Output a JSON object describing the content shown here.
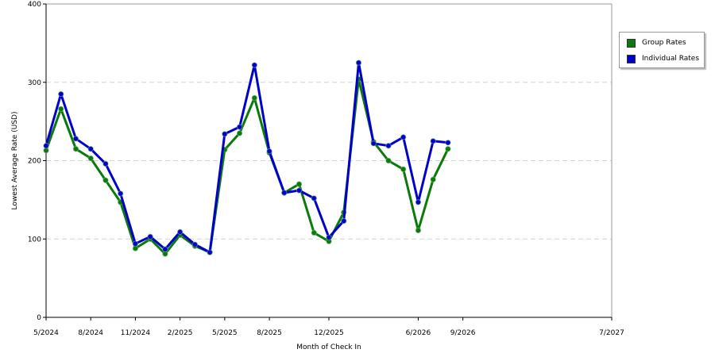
{
  "chart_data": {
    "type": "line",
    "xlabel": "Month of Check In",
    "ylabel": "Lowest Average Rate (USD)",
    "ylim": [
      0,
      400
    ],
    "yticks": [
      0,
      100,
      200,
      300,
      400
    ],
    "grid": true,
    "legend_position": "right",
    "x": [
      "5/2024",
      "6/2024",
      "7/2024",
      "8/2024",
      "9/2024",
      "10/2024",
      "11/2024",
      "12/2024",
      "1/2025",
      "2/2025",
      "3/2025",
      "4/2025",
      "5/2025",
      "6/2025",
      "7/2025",
      "8/2025",
      "9/2025",
      "10/2025",
      "11/2025",
      "12/2025",
      "1/2026",
      "2/2026",
      "3/2026",
      "4/2026",
      "5/2026",
      "6/2026",
      "7/2026",
      "8/2026",
      "9/2026",
      "10/2026",
      "11/2026",
      "12/2026",
      "1/2027",
      "2/2027",
      "3/2027",
      "4/2027",
      "5/2027",
      "6/2027",
      "7/2027"
    ],
    "x_tick_labels": [
      "5/2024",
      "8/2024",
      "11/2024",
      "2/2025",
      "5/2025",
      "8/2025",
      "12/2025",
      "6/2026",
      "9/2026",
      "7/2027"
    ],
    "x_tick_positions": [
      "5/2024",
      "8/2024",
      "11/2024",
      "2/2025",
      "5/2025",
      "8/2025",
      "12/2025",
      "6/2026",
      "9/2026",
      "7/2027"
    ],
    "series": [
      {
        "name": "Group Rates",
        "color": "#0a7a0a",
        "points": [
          [
            "5/2024",
            213
          ],
          [
            "6/2024",
            266
          ],
          [
            "7/2024",
            215
          ],
          [
            "8/2024",
            203
          ],
          [
            "9/2024",
            175
          ],
          [
            "10/2024",
            147
          ],
          [
            "11/2024",
            88
          ],
          [
            "12/2024",
            100
          ],
          [
            "1/2025",
            81
          ],
          [
            "2/2025",
            105
          ],
          [
            "3/2025",
            91
          ],
          [
            "4/2025",
            83
          ],
          [
            "5/2025",
            214
          ],
          [
            "6/2025",
            235
          ],
          [
            "7/2025",
            280
          ],
          [
            "8/2025",
            210
          ],
          [
            "9/2025",
            159
          ],
          [
            "10/2025",
            170
          ],
          [
            "11/2025",
            108
          ],
          [
            "12/2025",
            97
          ],
          [
            "1/2026",
            134
          ],
          [
            "2/2026",
            304
          ],
          [
            "3/2026",
            224
          ],
          [
            "4/2026",
            200
          ],
          [
            "5/2026",
            189
          ],
          [
            "6/2026",
            111
          ],
          [
            "7/2026",
            176
          ],
          [
            "8/2026",
            215
          ]
        ]
      },
      {
        "name": "Individual Rates",
        "color": "#0000cc",
        "points": [
          [
            "5/2024",
            219
          ],
          [
            "6/2024",
            285
          ],
          [
            "7/2024",
            228
          ],
          [
            "8/2024",
            215
          ],
          [
            "9/2024",
            196
          ],
          [
            "10/2024",
            158
          ],
          [
            "11/2024",
            94
          ],
          [
            "12/2024",
            103
          ],
          [
            "1/2025",
            87
          ],
          [
            "2/2025",
            109
          ],
          [
            "3/2025",
            93
          ],
          [
            "4/2025",
            83
          ],
          [
            "5/2025",
            234
          ],
          [
            "6/2025",
            243
          ],
          [
            "7/2025",
            322
          ],
          [
            "8/2025",
            212
          ],
          [
            "9/2025",
            159
          ],
          [
            "10/2025",
            162
          ],
          [
            "11/2025",
            152
          ],
          [
            "12/2025",
            102
          ],
          [
            "1/2026",
            123
          ],
          [
            "2/2026",
            325
          ],
          [
            "3/2026",
            222
          ],
          [
            "4/2026",
            219
          ],
          [
            "5/2026",
            230
          ],
          [
            "6/2026",
            147
          ],
          [
            "7/2026",
            225
          ],
          [
            "8/2026",
            223
          ]
        ]
      }
    ]
  }
}
